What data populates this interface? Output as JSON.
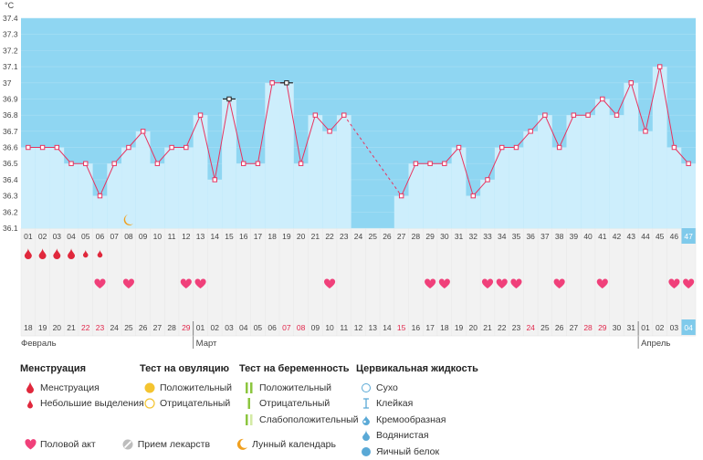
{
  "chart_data": {
    "type": "line",
    "unit_label": "°C",
    "y_ticks": [
      "37.4",
      "37.3",
      "37.2",
      "37.1",
      "37",
      "36.9",
      "36.8",
      "36.7",
      "36.6",
      "36.5",
      "36.4",
      "36.3",
      "36.2",
      "36.1"
    ],
    "ylim": [
      36.1,
      37.4
    ],
    "cycle_days": [
      "01",
      "02",
      "03",
      "04",
      "05",
      "06",
      "07",
      "08",
      "09",
      "10",
      "11",
      "12",
      "13",
      "14",
      "15",
      "16",
      "17",
      "18",
      "19",
      "20",
      "21",
      "22",
      "23",
      "24",
      "25",
      "26",
      "27",
      "28",
      "29",
      "30",
      "31",
      "32",
      "33",
      "34",
      "35",
      "36",
      "37",
      "38",
      "39",
      "40",
      "41",
      "42",
      "43",
      "44",
      "45",
      "46",
      "47"
    ],
    "temperatures": [
      36.6,
      36.6,
      36.6,
      36.5,
      36.5,
      36.3,
      36.5,
      36.6,
      36.7,
      36.5,
      36.6,
      36.6,
      36.8,
      36.4,
      36.9,
      36.5,
      36.5,
      37.0,
      37.0,
      36.5,
      36.8,
      36.7,
      36.8,
      null,
      null,
      null,
      36.3,
      36.5,
      36.5,
      36.5,
      36.6,
      36.3,
      36.4,
      36.6,
      36.6,
      36.7,
      36.8,
      36.6,
      36.8,
      36.8,
      36.9,
      36.8,
      37.0,
      36.7,
      37.1,
      36.6,
      36.5
    ],
    "dashed_gap": [
      23,
      27
    ],
    "highlighted_day": "47",
    "highlighted_date": "04",
    "excluded_points": [
      15,
      19
    ],
    "dates": [
      "18",
      "19",
      "20",
      "21",
      "22",
      "23",
      "24",
      "25",
      "26",
      "27",
      "28",
      "29",
      "01",
      "02",
      "03",
      "04",
      "05",
      "06",
      "07",
      "08",
      "09",
      "10",
      "11",
      "12",
      "13",
      "14",
      "15",
      "16",
      "17",
      "18",
      "19",
      "20",
      "21",
      "22",
      "23",
      "24",
      "25",
      "26",
      "27",
      "28",
      "29",
      "30",
      "31",
      "01",
      "02",
      "03",
      "04"
    ],
    "red_dates": [
      5,
      6,
      12,
      19,
      20,
      27,
      36,
      40,
      41
    ],
    "month_labels": [
      {
        "day": 1,
        "label": "Февраль"
      },
      {
        "day": 13,
        "label": "Март"
      },
      {
        "day": 44,
        "label": "Апрель"
      }
    ],
    "menstruation": [
      {
        "day": 1,
        "kind": "heavy"
      },
      {
        "day": 2,
        "kind": "heavy"
      },
      {
        "day": 3,
        "kind": "heavy"
      },
      {
        "day": 4,
        "kind": "heavy"
      },
      {
        "day": 5,
        "kind": "light"
      },
      {
        "day": 6,
        "kind": "light"
      }
    ],
    "intercourse_days": [
      6,
      8,
      12,
      13,
      22,
      29,
      30,
      33,
      34,
      35,
      38,
      41,
      46,
      47
    ],
    "moon_day": 8,
    "moon_value": 36.15
  },
  "legend": {
    "menstruation": {
      "title": "Менструация",
      "items": [
        "Менструация",
        "Небольшие выделения"
      ]
    },
    "ovulation_test": {
      "title": "Тест на овуляцию",
      "items": [
        "Положительный",
        "Отрицательный"
      ]
    },
    "pregnancy_test": {
      "title": "Тест на беременность",
      "items": [
        "Положительный",
        "Отрицательный",
        "Слабоположительный"
      ]
    },
    "cervical_fluid": {
      "title": "Цервикальная жидкость",
      "items": [
        "Сухо",
        "Клейкая",
        "Кремообразная",
        "Водянистая",
        "Яичный белок"
      ]
    },
    "bottom": [
      "Половой акт",
      "Прием лекарств",
      "Лунный календарь"
    ]
  },
  "colors": {
    "chart_bg": "#8fd6f2",
    "bar_fill": "#cdeefc",
    "line": "#e8335f",
    "heart": "#f0407a",
    "drop": "#e0283c",
    "highlight": "#7fcaeb",
    "red_date": "#e0284c",
    "grid_bg": "#f2f2f2"
  }
}
